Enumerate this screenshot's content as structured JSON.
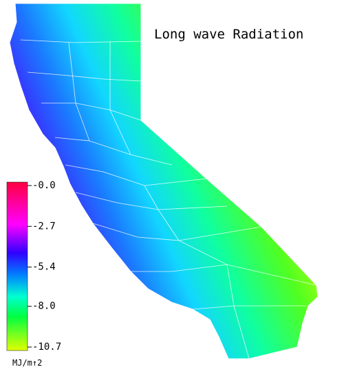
{
  "title": "Long wave Radiation",
  "colorbar": {
    "range": [
      -10.7,
      0
    ],
    "ticks": [
      {
        "value": 0,
        "label": "-0.0"
      },
      -2.7,
      -5.4,
      {
        "value": -8,
        "label": "-8.0"
      },
      -10.7
    ],
    "unit": "MJ/m↑2"
  }
}
